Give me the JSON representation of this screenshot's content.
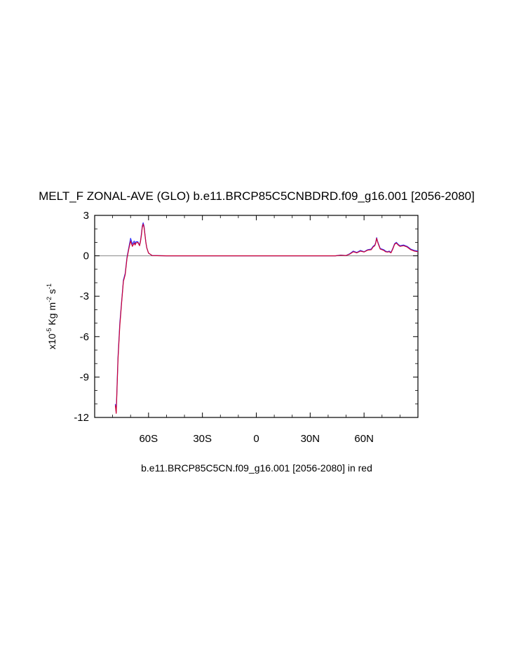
{
  "chart_data": {
    "type": "line",
    "title": "MELT_F ZONAL-AVE (GLO) b.e11.BRCP85C5CNBDRD.f09_g16.001 [2056-2080]",
    "subtitle": "b.e11.BRCP85C5CN.f09_g16.001 [2056-2080] in red",
    "ylabel": {
      "prefix": "x10",
      "exp1": "-5",
      "unit1": " Kg m",
      "exp2": "-2",
      "unit2": " s",
      "exp3": "-1"
    },
    "xlim": [
      -90,
      90
    ],
    "ylim": [
      -12,
      3
    ],
    "x_ticks": [
      {
        "value": -60,
        "label": "60S"
      },
      {
        "value": -30,
        "label": "30S"
      },
      {
        "value": 0,
        "label": "0"
      },
      {
        "value": 30,
        "label": "30N"
      },
      {
        "value": 60,
        "label": "60N"
      }
    ],
    "y_ticks": [
      {
        "value": 3,
        "label": "3"
      },
      {
        "value": 0,
        "label": "0"
      },
      {
        "value": -3,
        "label": "-3"
      },
      {
        "value": -6,
        "label": "-6"
      },
      {
        "value": -9,
        "label": "-9"
      },
      {
        "value": -12,
        "label": "-12"
      }
    ],
    "zero_line": true,
    "grid": false,
    "series": [
      {
        "color": "#3333ff",
        "x": [
          -78.5,
          -78,
          -77.5,
          -77,
          -76,
          -75,
          -74,
          -73,
          -72,
          -71,
          -70,
          -69.5,
          -69,
          -68,
          -67.5,
          -67,
          -66,
          -65,
          -64.5,
          -64,
          -63.5,
          -63,
          -62.5,
          -62,
          -61.5,
          -61,
          -60,
          -58,
          -50,
          0,
          30,
          44,
          47,
          50,
          52,
          54,
          56,
          58,
          60,
          62,
          64,
          65,
          66,
          66.5,
          67,
          67.5,
          68,
          69,
          70,
          71,
          72,
          73,
          74,
          75,
          76,
          77,
          78,
          79,
          80,
          82,
          84,
          86,
          88,
          90
        ],
        "y": [
          -11.0,
          -11.6,
          -9.5,
          -7.5,
          -5.0,
          -3.4,
          -1.8,
          -1.3,
          -0.1,
          0.6,
          1.3,
          1.1,
          0.85,
          1.1,
          0.9,
          1.05,
          1.05,
          0.8,
          1.1,
          1.6,
          2.2,
          2.45,
          2.2,
          1.6,
          1.0,
          0.6,
          0.2,
          0.02,
          0.0,
          0.0,
          0.0,
          0.0,
          0.05,
          0.02,
          0.15,
          0.35,
          0.25,
          0.4,
          0.3,
          0.45,
          0.5,
          0.7,
          0.8,
          1.0,
          1.35,
          1.1,
          0.9,
          0.55,
          0.5,
          0.45,
          0.35,
          0.3,
          0.35,
          0.25,
          0.55,
          0.9,
          1.0,
          0.85,
          0.75,
          0.8,
          0.7,
          0.5,
          0.4,
          0.35
        ]
      },
      {
        "color": "#cc0033",
        "x": [
          -78.5,
          -78,
          -77.5,
          -77,
          -76,
          -75,
          -74,
          -73,
          -72,
          -71,
          -70,
          -69.5,
          -69,
          -68,
          -67.5,
          -67,
          -66,
          -65,
          -64.5,
          -64,
          -63.5,
          -63,
          -62.5,
          -62,
          -61.5,
          -61,
          -60,
          -58,
          -50,
          0,
          30,
          44,
          47,
          50,
          52,
          54,
          56,
          58,
          60,
          62,
          64,
          65,
          66,
          66.5,
          67,
          67.5,
          68,
          69,
          70,
          71,
          72,
          73,
          74,
          75,
          76,
          77,
          78,
          79,
          80,
          82,
          84,
          86,
          88,
          90
        ],
        "y": [
          -11.1,
          -11.7,
          -9.7,
          -7.7,
          -5.2,
          -3.5,
          -1.9,
          -1.4,
          -0.2,
          0.5,
          1.1,
          0.9,
          0.7,
          0.95,
          0.8,
          0.95,
          1.0,
          0.75,
          1.05,
          1.5,
          2.1,
          2.35,
          2.1,
          1.55,
          1.0,
          0.6,
          0.2,
          0.02,
          0.0,
          0.0,
          0.0,
          0.0,
          0.04,
          0.02,
          0.12,
          0.3,
          0.22,
          0.35,
          0.28,
          0.42,
          0.45,
          0.65,
          0.75,
          0.95,
          1.3,
          1.05,
          0.85,
          0.5,
          0.45,
          0.4,
          0.3,
          0.28,
          0.3,
          0.22,
          0.5,
          0.85,
          0.95,
          0.8,
          0.7,
          0.75,
          0.65,
          0.45,
          0.35,
          0.3
        ]
      }
    ]
  }
}
